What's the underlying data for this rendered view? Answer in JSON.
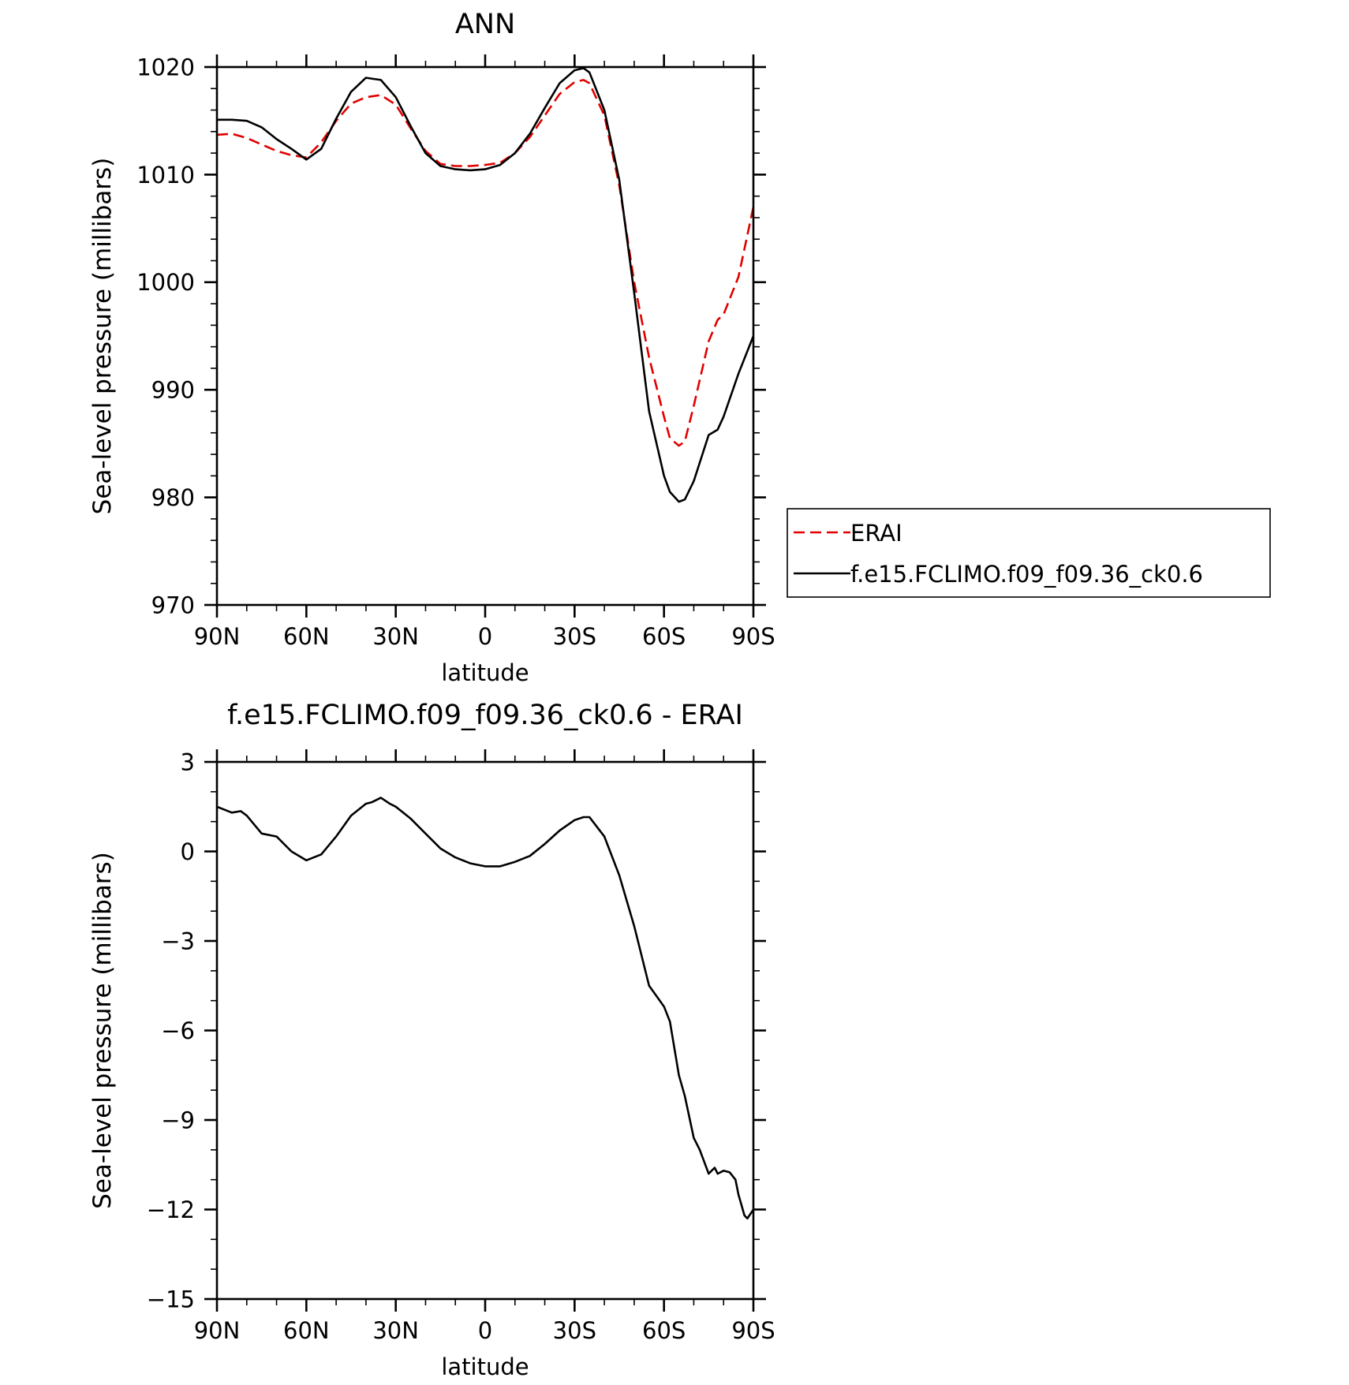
{
  "chart_data": [
    {
      "type": "line",
      "title": "ANN",
      "xlabel": "latitude",
      "ylabel": "Sea-level pressure (millibars)",
      "xlim": [
        90,
        -90
      ],
      "ylim": [
        970,
        1020
      ],
      "x_ticks": [
        90,
        60,
        30,
        0,
        -30,
        -60,
        -90
      ],
      "x_tick_labels": [
        "90N",
        "60N",
        "30N",
        "0",
        "30S",
        "60S",
        "90S"
      ],
      "y_ticks": [
        970,
        980,
        990,
        1000,
        1010,
        1020
      ],
      "y_tick_labels": [
        "970",
        "980",
        "990",
        "1000",
        "1010",
        "1020"
      ],
      "legend_position": "right",
      "series": [
        {
          "name": "ERAI",
          "color": "#e00000",
          "dash": "dashed",
          "x": [
            90,
            85,
            80,
            75,
            70,
            65,
            60,
            55,
            50,
            45,
            40,
            35,
            30,
            25,
            20,
            15,
            10,
            5,
            0,
            -5,
            -10,
            -15,
            -20,
            -25,
            -30,
            -33,
            -35,
            -40,
            -45,
            -50,
            -55,
            -60,
            -62,
            -65,
            -67,
            -70,
            -75,
            -78,
            -80,
            -85,
            -90
          ],
          "y": [
            1013.7,
            1013.8,
            1013.4,
            1012.8,
            1012.2,
            1011.8,
            1011.6,
            1013.0,
            1015.0,
            1016.6,
            1017.2,
            1017.4,
            1016.5,
            1014.3,
            1012.2,
            1011.0,
            1010.8,
            1010.8,
            1010.9,
            1011.1,
            1012.0,
            1013.5,
            1015.5,
            1017.5,
            1018.6,
            1018.8,
            1018.5,
            1015.5,
            1009.0,
            1000.0,
            993.0,
            987.5,
            985.5,
            984.8,
            985.2,
            988.5,
            994.5,
            996.5,
            997.0,
            1000.5,
            1007.0
          ]
        },
        {
          "name": "f.e15.FCLIMO.f09_f09.36_ck0.6",
          "color": "#000000",
          "dash": "solid",
          "x": [
            90,
            85,
            80,
            75,
            70,
            65,
            60,
            55,
            50,
            45,
            40,
            35,
            30,
            25,
            20,
            15,
            10,
            5,
            0,
            -5,
            -10,
            -15,
            -20,
            -25,
            -30,
            -33,
            -35,
            -40,
            -45,
            -50,
            -55,
            -60,
            -62,
            -65,
            -67,
            -70,
            -75,
            -78,
            -80,
            -85,
            -90
          ],
          "y": [
            1015.1,
            1015.1,
            1015.0,
            1014.4,
            1013.3,
            1012.4,
            1011.4,
            1012.4,
            1015.2,
            1017.7,
            1019.0,
            1018.8,
            1017.2,
            1014.5,
            1012.0,
            1010.8,
            1010.5,
            1010.4,
            1010.5,
            1010.9,
            1012.0,
            1013.8,
            1016.2,
            1018.5,
            1019.7,
            1019.9,
            1019.5,
            1016.0,
            1009.5,
            999.0,
            988.0,
            982.0,
            980.5,
            979.6,
            979.8,
            981.5,
            985.8,
            986.3,
            987.5,
            991.5,
            995.0
          ]
        }
      ]
    },
    {
      "type": "line",
      "title": "f.e15.FCLIMO.f09_f09.36_ck0.6 - ERAI",
      "xlabel": "latitude",
      "ylabel": "Sea-level pressure (millibars)",
      "xlim": [
        90,
        -90
      ],
      "ylim": [
        -15,
        3
      ],
      "x_ticks": [
        90,
        60,
        30,
        0,
        -30,
        -60,
        -90
      ],
      "x_tick_labels": [
        "90N",
        "60N",
        "30N",
        "0",
        "30S",
        "60S",
        "90S"
      ],
      "y_ticks": [
        -15,
        -12,
        -9,
        -6,
        -3,
        0,
        3
      ],
      "y_tick_labels": [
        "−15",
        "−12",
        "−9",
        "−6",
        "−3",
        "0",
        "3"
      ],
      "series": [
        {
          "color": "#000000",
          "dash": "solid",
          "x": [
            90,
            85,
            82,
            80,
            75,
            70,
            65,
            60,
            55,
            50,
            45,
            40,
            38,
            35,
            32,
            30,
            25,
            20,
            15,
            10,
            5,
            0,
            -5,
            -10,
            -15,
            -20,
            -25,
            -30,
            -33,
            -35,
            -40,
            -45,
            -50,
            -55,
            -60,
            -62,
            -65,
            -67,
            -70,
            -72,
            -75,
            -77,
            -78,
            -80,
            -82,
            -84,
            -85,
            -87,
            -88,
            -90
          ],
          "y": [
            1.5,
            1.3,
            1.35,
            1.2,
            0.6,
            0.5,
            0.0,
            -0.3,
            -0.1,
            0.5,
            1.2,
            1.6,
            1.65,
            1.8,
            1.6,
            1.5,
            1.1,
            0.6,
            0.1,
            -0.2,
            -0.4,
            -0.5,
            -0.5,
            -0.35,
            -0.15,
            0.25,
            0.7,
            1.05,
            1.15,
            1.15,
            0.5,
            -0.8,
            -2.5,
            -4.5,
            -5.2,
            -5.7,
            -7.5,
            -8.2,
            -9.6,
            -10.0,
            -10.8,
            -10.6,
            -10.8,
            -10.7,
            -10.75,
            -11.0,
            -11.5,
            -12.2,
            -12.3,
            -12.0
          ]
        }
      ]
    }
  ]
}
